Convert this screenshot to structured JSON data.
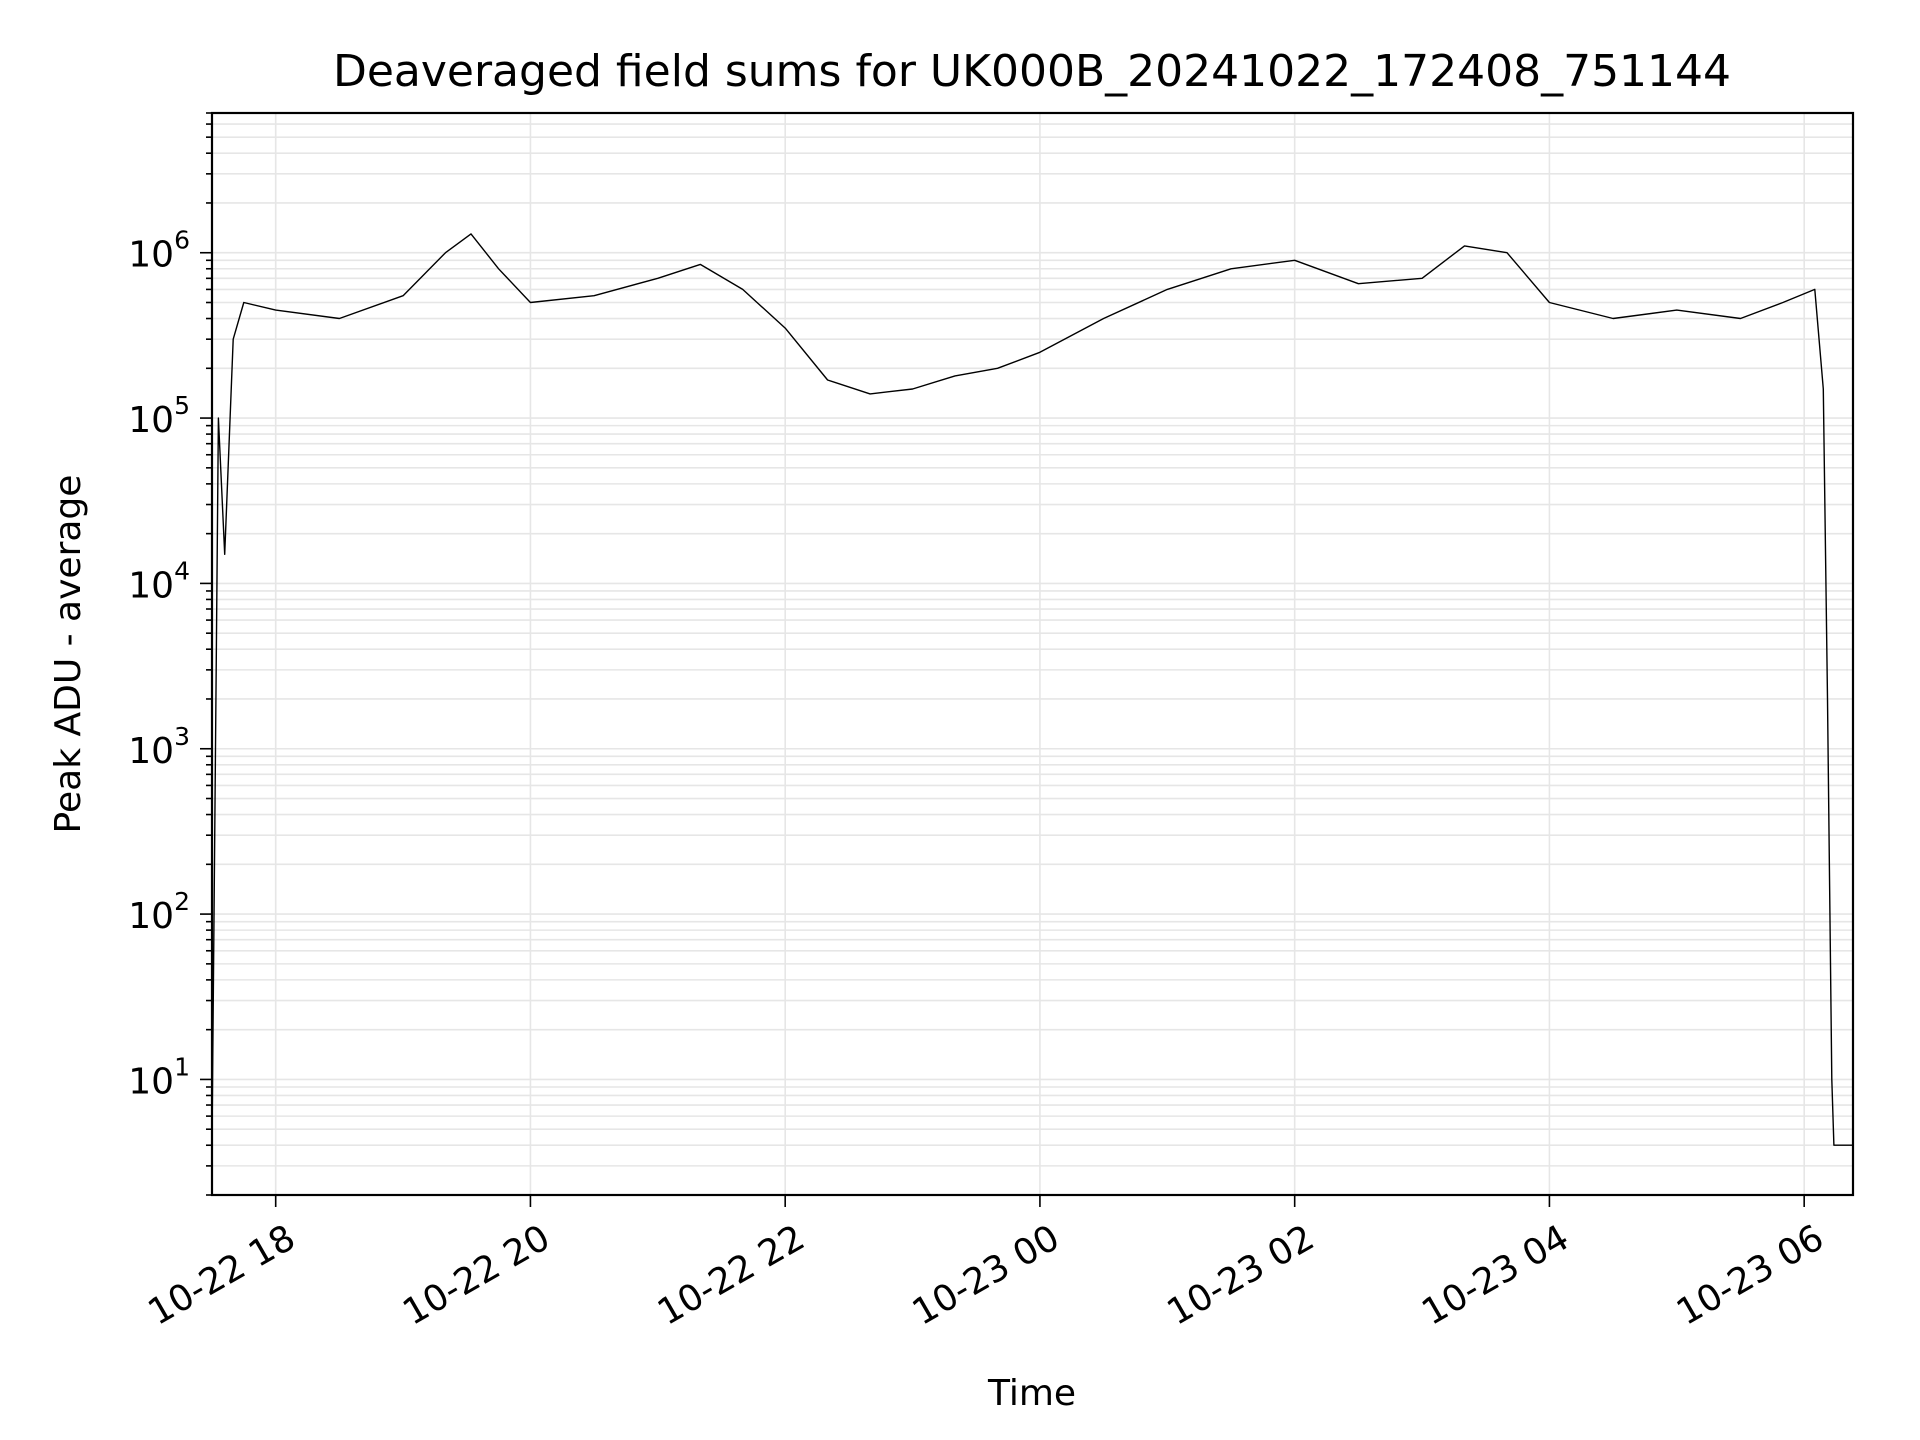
{
  "chart_data": {
    "type": "line",
    "title": "Deaveraged field sums for UK000B_20241022_172408_751144",
    "xlabel": "Time",
    "ylabel": "Peak ADU - average",
    "yscale": "log",
    "ylim": [
      2,
      7000000
    ],
    "xlim": [
      "2024-10-22T17:30",
      "2024-10-23T06:23"
    ],
    "x_ticks": [
      {
        "at": "2024-10-22T18:00",
        "label": "10-22 18"
      },
      {
        "at": "2024-10-22T20:00",
        "label": "10-22 20"
      },
      {
        "at": "2024-10-22T22:00",
        "label": "10-22 22"
      },
      {
        "at": "2024-10-23T00:00",
        "label": "10-23 00"
      },
      {
        "at": "2024-10-23T02:00",
        "label": "10-23 02"
      },
      {
        "at": "2024-10-23T04:00",
        "label": "10-23 04"
      },
      {
        "at": "2024-10-23T06:00",
        "label": "10-23 06"
      }
    ],
    "y_ticks": [
      {
        "value": 10,
        "base": "10",
        "exp": "1"
      },
      {
        "value": 100,
        "base": "10",
        "exp": "2"
      },
      {
        "value": 1000,
        "base": "10",
        "exp": "3"
      },
      {
        "value": 10000,
        "base": "10",
        "exp": "4"
      },
      {
        "value": 100000,
        "base": "10",
        "exp": "5"
      },
      {
        "value": 1000000,
        "base": "10",
        "exp": "6"
      }
    ],
    "grid": true,
    "line_color": "#000000",
    "grid_color": "#e6e6e6",
    "series": [
      {
        "x": [
          "2024-10-22T17:30",
          "2024-10-22T17:33",
          "2024-10-22T17:36",
          "2024-10-22T17:40",
          "2024-10-22T17:45",
          "2024-10-22T18:00",
          "2024-10-22T18:30",
          "2024-10-22T19:00",
          "2024-10-22T19:20",
          "2024-10-22T19:32",
          "2024-10-22T19:45",
          "2024-10-22T20:00",
          "2024-10-22T20:30",
          "2024-10-22T21:00",
          "2024-10-22T21:20",
          "2024-10-22T21:40",
          "2024-10-22T22:00",
          "2024-10-22T22:20",
          "2024-10-22T22:40",
          "2024-10-22T23:00",
          "2024-10-22T23:20",
          "2024-10-22T23:40",
          "2024-10-23T00:00",
          "2024-10-23T00:30",
          "2024-10-23T01:00",
          "2024-10-23T01:30",
          "2024-10-23T02:00",
          "2024-10-23T02:30",
          "2024-10-23T03:00",
          "2024-10-23T03:20",
          "2024-10-23T03:40",
          "2024-10-23T04:00",
          "2024-10-23T04:30",
          "2024-10-23T05:00",
          "2024-10-23T05:30",
          "2024-10-23T05:50",
          "2024-10-23T06:05",
          "2024-10-23T06:09",
          "2024-10-23T06:11",
          "2024-10-23T06:13",
          "2024-10-23T06:14",
          "2024-10-23T06:15",
          "2024-10-23T06:23"
        ],
        "values": [
          4,
          100000,
          15000,
          300000,
          500000,
          450000,
          400000,
          550000,
          1000000,
          1300000,
          800000,
          500000,
          550000,
          700000,
          850000,
          600000,
          350000,
          170000,
          140000,
          150000,
          180000,
          200000,
          250000,
          400000,
          600000,
          800000,
          900000,
          650000,
          700000,
          1100000,
          1000000,
          500000,
          400000,
          450000,
          400000,
          500000,
          600000,
          150000,
          2000,
          10,
          4,
          4,
          4
        ]
      }
    ]
  }
}
